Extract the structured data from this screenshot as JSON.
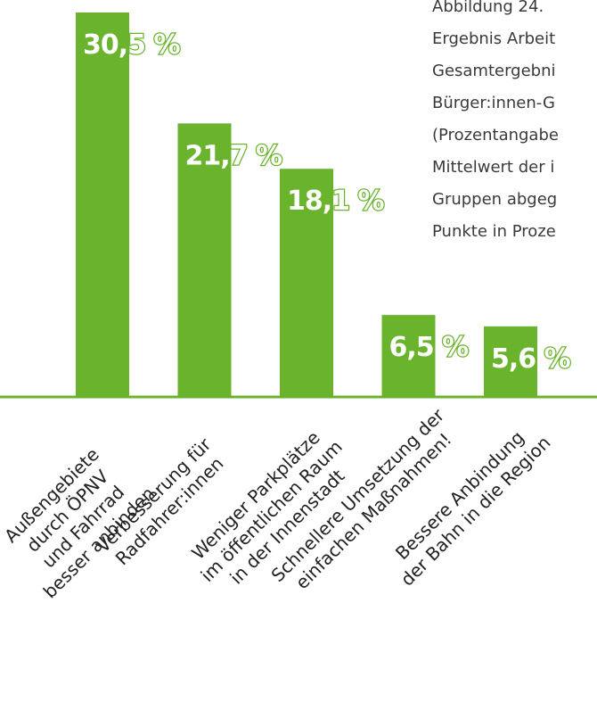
{
  "chart_data": {
    "type": "bar",
    "caption": [
      "Abbildung 24.",
      "Ergebnis Arbeit",
      "Gesamtergebni",
      "Bürger:innen-G",
      "(Prozentangabe",
      "Mittelwert der i",
      "Gruppen abgeg",
      "Punkte in Proze"
    ],
    "categories": [
      [
        "Außengebiete",
        "durch ÖPNV",
        "und Fahrrad",
        "besser anbinden"
      ],
      [
        "Verbesserung für",
        "Radfahrer:innen"
      ],
      [
        "Weniger Parkplätze",
        "im öffentlichen Raum",
        "in der Innenstadt"
      ],
      [
        "Schnellere Umsetzung der",
        "einfachen Maßnahmen!"
      ],
      [
        "Bessere Anbindung",
        "der Bahn in die Region"
      ]
    ],
    "values": [
      30.5,
      21.7,
      18.1,
      6.5,
      5.6
    ],
    "value_labels": [
      "30,5 %",
      "21,7 %",
      "18,1 %",
      "6,5 %",
      "5,6 %"
    ],
    "color": "#6ab42d"
  }
}
